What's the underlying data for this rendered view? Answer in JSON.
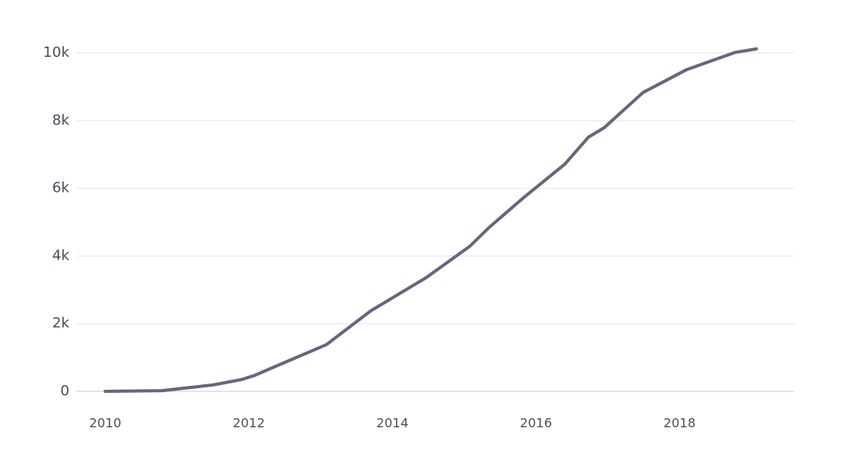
{
  "chart_data": {
    "type": "line",
    "x": [
      2010,
      2010.79,
      2011.5,
      2011.9,
      2012.08,
      2012.33,
      2013.08,
      2013.7,
      2014.47,
      2015.08,
      2015.35,
      2015.82,
      2016.4,
      2016.73,
      2016.95,
      2017.49,
      2018.1,
      2018.78,
      2019.07
    ],
    "series": [
      {
        "color": "#66667e",
        "values": [
          0,
          20,
          190,
          350,
          470,
          700,
          1380,
          2380,
          3360,
          4290,
          4850,
          5710,
          6710,
          7510,
          7790,
          8830,
          9510,
          10020,
          10120
        ]
      }
    ],
    "xlim": [
      2009.6,
      2019.6
    ],
    "xticks": [
      2010,
      2012,
      2014,
      2016,
      2018
    ],
    "ylim": [
      0,
      10400
    ],
    "yticks": [
      0,
      {
        "value": 2000,
        "label": "2k"
      },
      {
        "value": 4000,
        "label": "4k"
      },
      {
        "value": 6000,
        "label": "6k"
      },
      {
        "value": 8000,
        "label": "8k"
      },
      {
        "value": 10000,
        "label": "10k"
      }
    ],
    "grid": true
  }
}
